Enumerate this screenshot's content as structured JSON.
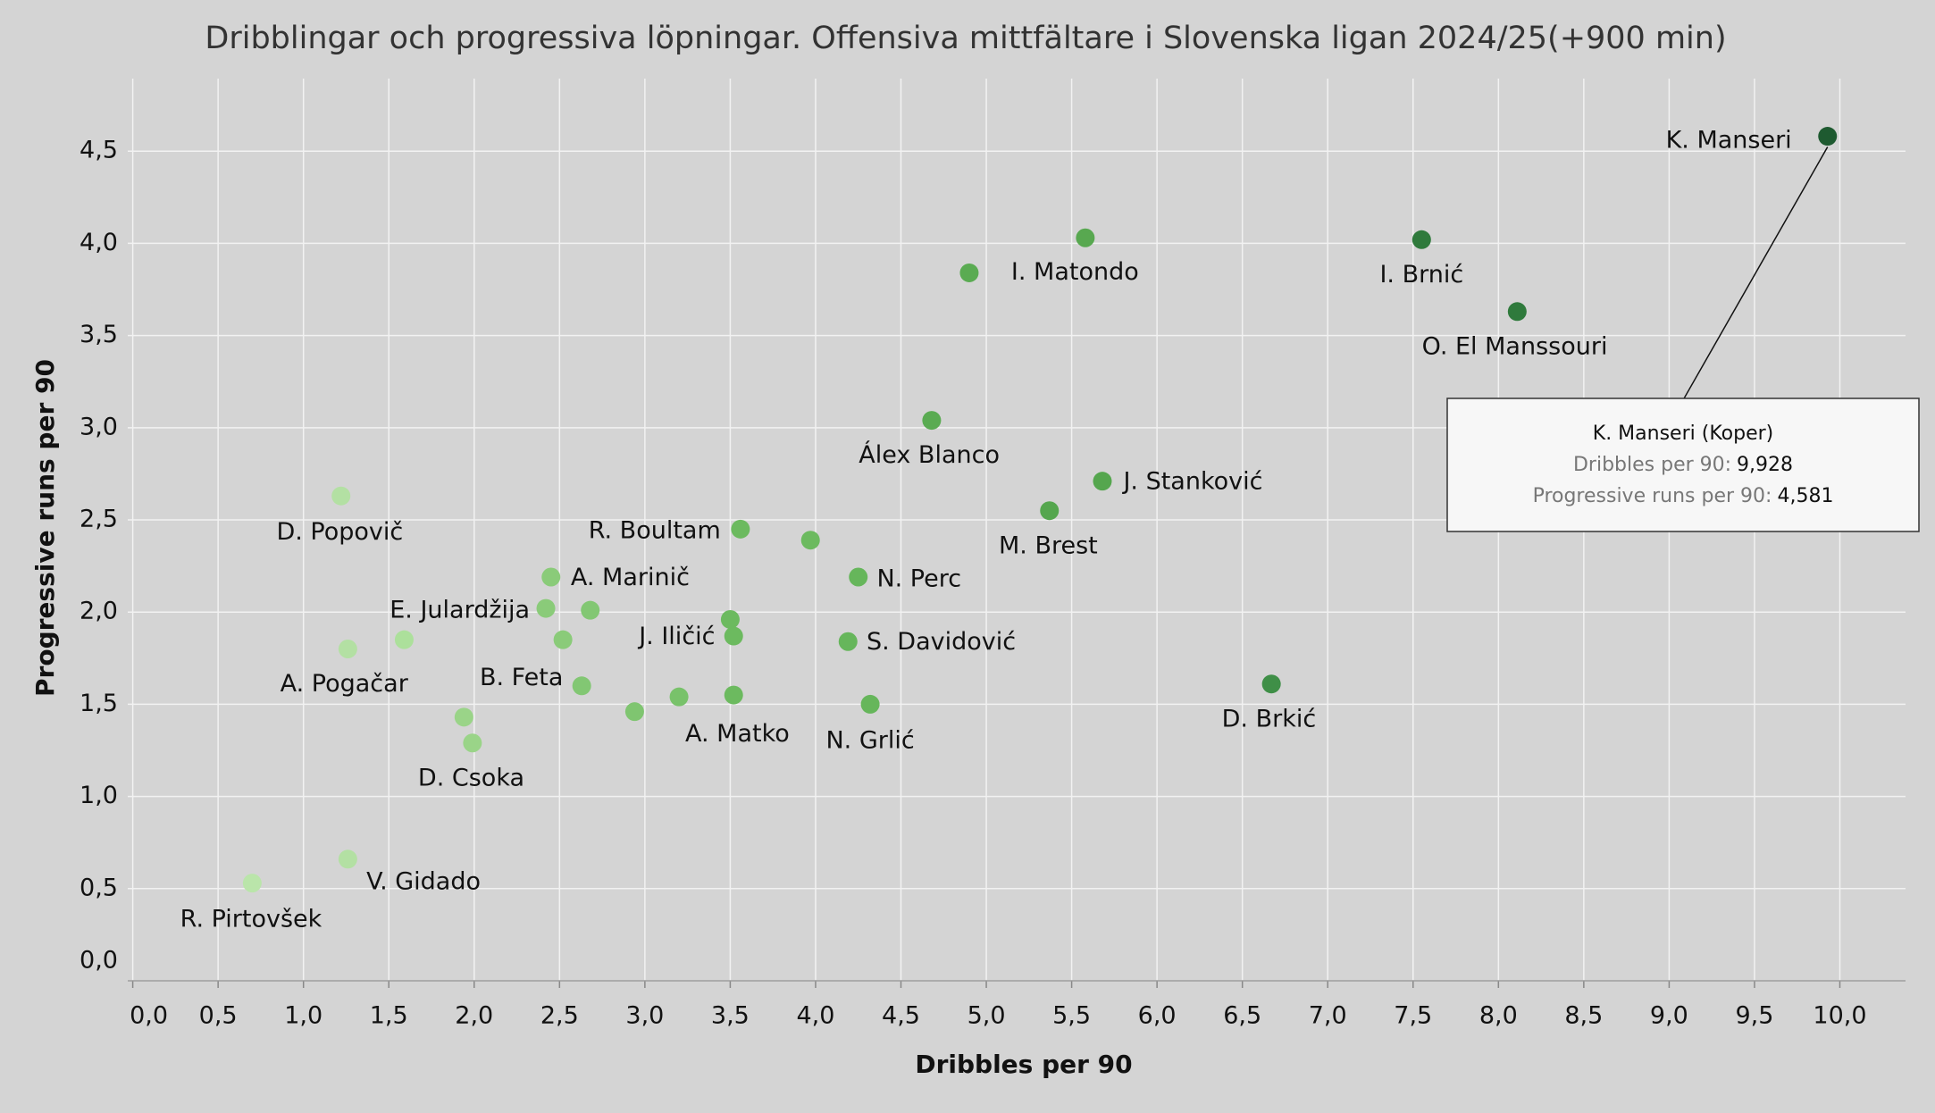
{
  "chart_data": {
    "type": "scatter",
    "title": "Dribblingar och progressiva löpningar. Offensiva mittfältare i Slovenska ligan 2024/25(+900 min)",
    "x_label": "Dribbles per 90",
    "y_label": "Progressive runs per 90",
    "xlim": [
      0,
      10.28
    ],
    "ylim": [
      0,
      4.85
    ],
    "grid": true,
    "xticks": [
      {
        "value": 0,
        "label": "0,0"
      },
      {
        "value": 0.5,
        "label": "0,5"
      },
      {
        "value": 1,
        "label": "1,0"
      },
      {
        "value": 1.5,
        "label": "1,5"
      },
      {
        "value": 2,
        "label": "2,0"
      },
      {
        "value": 2.5,
        "label": "2,5"
      },
      {
        "value": 3,
        "label": "3,0"
      },
      {
        "value": 3.5,
        "label": "3,5"
      },
      {
        "value": 4,
        "label": "4,0"
      },
      {
        "value": 4.5,
        "label": "4,5"
      },
      {
        "value": 5,
        "label": "5,0"
      },
      {
        "value": 5.5,
        "label": "5,5"
      },
      {
        "value": 6,
        "label": "6,0"
      },
      {
        "value": 6.5,
        "label": "6,5"
      },
      {
        "value": 7,
        "label": "7,0"
      },
      {
        "value": 7.5,
        "label": "7,5"
      },
      {
        "value": 8,
        "label": "8,0"
      },
      {
        "value": 8.5,
        "label": "8,5"
      },
      {
        "value": 9,
        "label": "9,0"
      },
      {
        "value": 9.5,
        "label": "9,5"
      },
      {
        "value": 10,
        "label": "10,0"
      }
    ],
    "yticks": [
      {
        "value": 0,
        "label": "0,0"
      },
      {
        "value": 0.5,
        "label": "0,5"
      },
      {
        "value": 1,
        "label": "1,0"
      },
      {
        "value": 1.5,
        "label": "1,5"
      },
      {
        "value": 2,
        "label": "2,0"
      },
      {
        "value": 2.5,
        "label": "2,5"
      },
      {
        "value": 3,
        "label": "3,0"
      },
      {
        "value": 3.5,
        "label": "3,5"
      },
      {
        "value": 4,
        "label": "4,0"
      },
      {
        "value": 4.5,
        "label": "4,5"
      }
    ],
    "points": [
      {
        "label": "K. Manseri",
        "x": 9.928,
        "y": 4.581,
        "color": "#1e5a30"
      },
      {
        "label": "I. Brnić",
        "x": 7.55,
        "y": 4.02,
        "color": "#2f7a3c"
      },
      {
        "label": "O. El Manssouri",
        "x": 8.11,
        "y": 3.63,
        "color": "#2f7a3c"
      },
      {
        "label": "I. Matondo",
        "x": 4.9,
        "y": 3.84,
        "color": "#5aab52"
      },
      {
        "label": null,
        "x": 5.58,
        "y": 4.03,
        "color": "#58a850"
      },
      {
        "label": "Álex Blanco",
        "x": 4.68,
        "y": 3.04,
        "color": "#5aab52"
      },
      {
        "label": "J. Stanković",
        "x": 5.68,
        "y": 2.71,
        "color": "#55a64e"
      },
      {
        "label": "M. Brest",
        "x": 5.37,
        "y": 2.55,
        "color": "#55a64e"
      },
      {
        "label": "D. Brkić",
        "x": 6.67,
        "y": 1.61,
        "color": "#3f8f47"
      },
      {
        "label": "R. Boultam",
        "x": 3.56,
        "y": 2.45,
        "color": "#6cba5f"
      },
      {
        "label": null,
        "x": 3.97,
        "y": 2.39,
        "color": "#6cba5f"
      },
      {
        "label": "N. Perc",
        "x": 4.25,
        "y": 2.19,
        "color": "#66b65b"
      },
      {
        "label": "S. Davidović",
        "x": 4.19,
        "y": 1.84,
        "color": "#66b65b"
      },
      {
        "label": "N. Grlić",
        "x": 4.32,
        "y": 1.5,
        "color": "#66b65b"
      },
      {
        "label": null,
        "x": 3.5,
        "y": 1.96,
        "color": "#6cba5f"
      },
      {
        "label": "J. Iličić",
        "x": 3.52,
        "y": 1.87,
        "color": "#6cba5f"
      },
      {
        "label": "A. Matko",
        "x": 3.52,
        "y": 1.55,
        "color": "#6cba5f"
      },
      {
        "label": null,
        "x": 3.2,
        "y": 1.54,
        "color": "#78c26a"
      },
      {
        "label": null,
        "x": 2.94,
        "y": 1.46,
        "color": "#7fc570"
      },
      {
        "label": "A. Marinič",
        "x": 2.45,
        "y": 2.19,
        "color": "#8acb79"
      },
      {
        "label": "E. Julardžija",
        "x": 2.42,
        "y": 2.02,
        "color": "#8acb79"
      },
      {
        "label": null,
        "x": 2.68,
        "y": 2.01,
        "color": "#82c773"
      },
      {
        "label": null,
        "x": 2.52,
        "y": 1.85,
        "color": "#8acb79"
      },
      {
        "label": "B. Feta",
        "x": 2.63,
        "y": 1.6,
        "color": "#82c773"
      },
      {
        "label": "D. Csoka",
        "x": 1.99,
        "y": 1.29,
        "color": "#9ad488"
      },
      {
        "label": null,
        "x": 1.94,
        "y": 1.43,
        "color": "#9ad488"
      },
      {
        "label": "D. Popovič",
        "x": 1.22,
        "y": 2.63,
        "color": "#b3e0a3"
      },
      {
        "label": "A. Pogačar",
        "x": 1.26,
        "y": 1.8,
        "color": "#b3e0a3"
      },
      {
        "label": null,
        "x": 1.59,
        "y": 1.85,
        "color": "#ace09b"
      },
      {
        "label": "V. Gidado",
        "x": 1.26,
        "y": 0.66,
        "color": "#b3e0a3"
      },
      {
        "label": "R. Pirtovšek",
        "x": 0.7,
        "y": 0.53,
        "color": "#bae5aa"
      }
    ],
    "tooltip": {
      "title": "K. Manseri (Koper)",
      "rows": [
        {
          "label": "Dribbles per 90:",
          "value": "9,928"
        },
        {
          "label": "Progressive runs per 90:",
          "value": "4,581"
        }
      ]
    }
  }
}
